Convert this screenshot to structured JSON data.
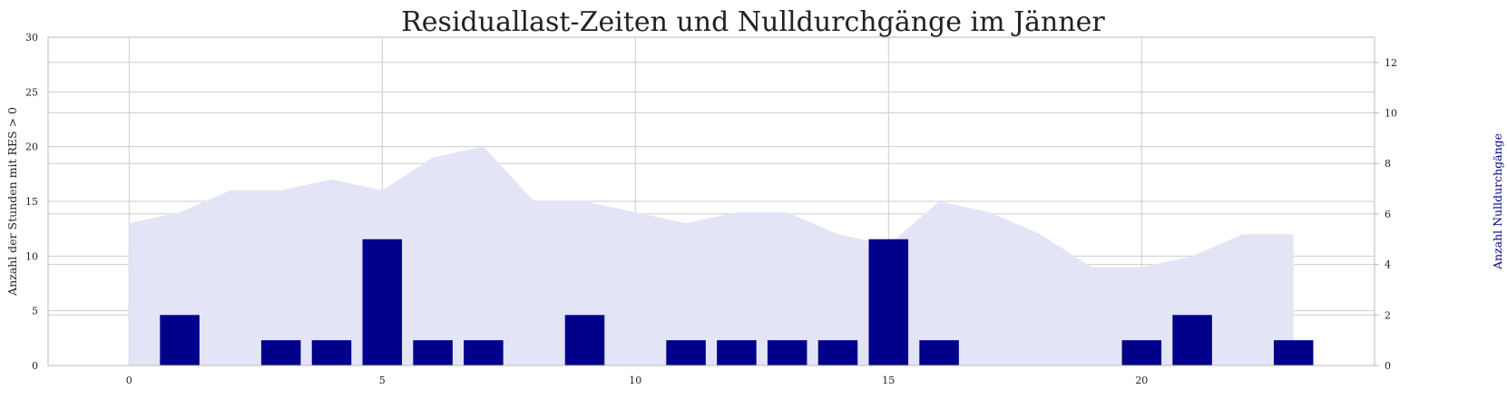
{
  "chart_data": {
    "type": "bar",
    "title": "Residuallast-Zeiten und Nulldurchgänge im Jänner",
    "xlabel": "",
    "x": [
      0,
      1,
      2,
      3,
      4,
      5,
      6,
      7,
      8,
      9,
      10,
      11,
      12,
      13,
      14,
      15,
      16,
      17,
      18,
      19,
      20,
      21,
      22,
      23
    ],
    "xlim": [
      -1.6,
      24.6
    ],
    "xticks": [
      0,
      5,
      10,
      15,
      20
    ],
    "grid": true,
    "series": [
      {
        "type": "area",
        "axis": "left",
        "color": "#e4e4f7",
        "values": [
          13,
          14,
          16,
          16,
          17,
          16,
          19,
          20,
          15,
          15,
          14,
          13,
          14,
          14,
          12,
          11,
          15,
          14,
          12,
          9,
          9,
          10,
          12,
          12
        ]
      },
      {
        "type": "bar",
        "axis": "right",
        "color": "#00008b",
        "values": [
          0,
          2,
          0,
          1,
          1,
          5,
          1,
          1,
          0,
          2,
          0,
          1,
          1,
          1,
          1,
          5,
          1,
          0,
          0,
          0,
          1,
          2,
          0,
          1
        ]
      }
    ],
    "y_left": {
      "label": "Anzahl der Stunden mit RES > 0",
      "ylim": [
        0,
        30
      ],
      "ticks": [
        0,
        5,
        10,
        15,
        20,
        25,
        30
      ],
      "color": "#222222"
    },
    "y_right": {
      "label": "Anzahl Nulldurchgänge",
      "ylim": [
        0,
        13
      ],
      "ticks": [
        0,
        2,
        4,
        6,
        8,
        10,
        12
      ],
      "color": "#00008b"
    }
  }
}
